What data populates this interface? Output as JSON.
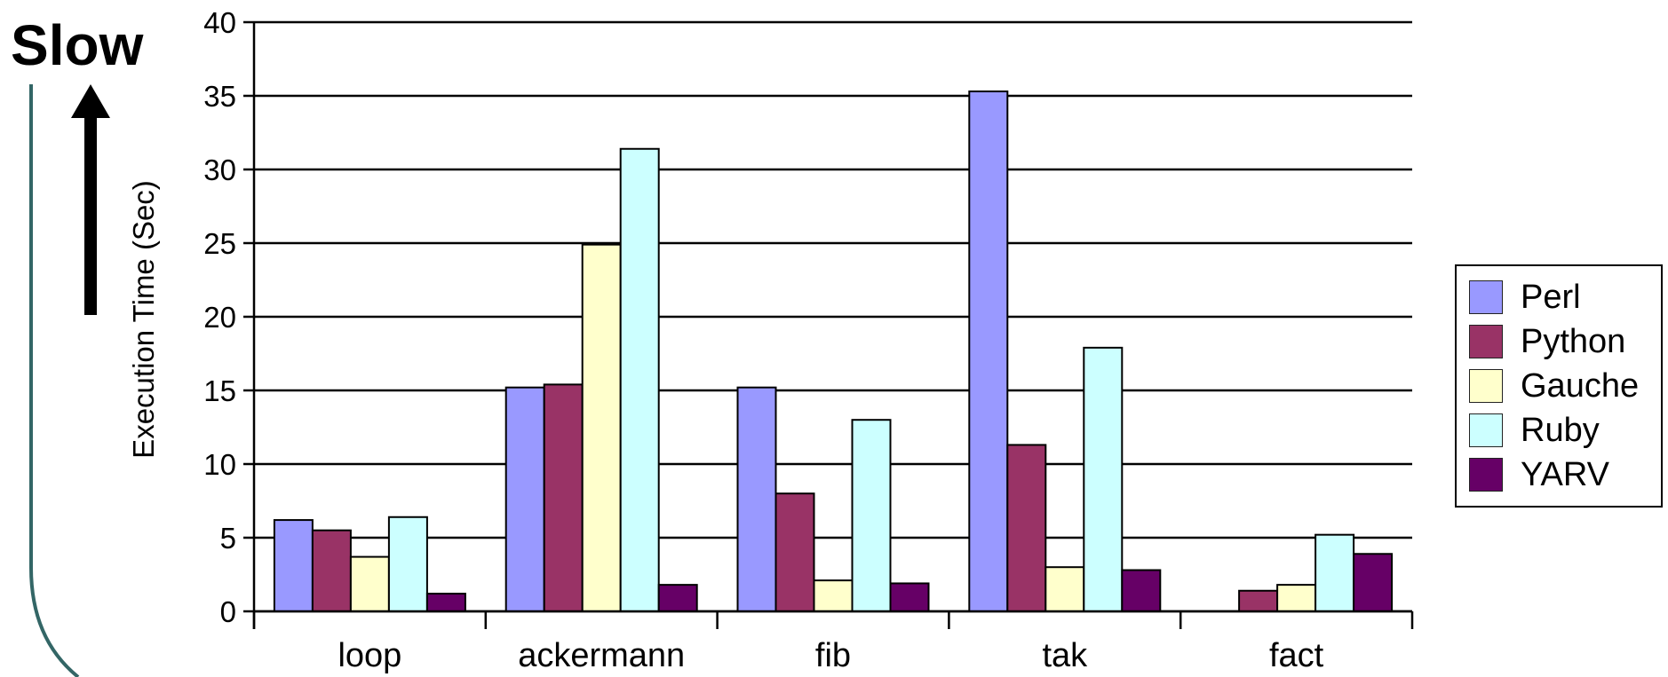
{
  "slow_label": "Slow",
  "chart_data": {
    "type": "bar",
    "title": "",
    "xlabel": "",
    "ylabel": "Execution Time (Sec)",
    "ylim": [
      0,
      40
    ],
    "yticks": [
      0,
      5,
      10,
      15,
      20,
      25,
      30,
      35,
      40
    ],
    "grid": true,
    "legend_position": "right",
    "categories": [
      "loop",
      "ackermann",
      "fib",
      "tak",
      "fact"
    ],
    "series": [
      {
        "name": "Perl",
        "color": "#9999ff",
        "values": [
          6.2,
          15.2,
          15.2,
          35.3,
          0
        ]
      },
      {
        "name": "Python",
        "color": "#993366",
        "values": [
          5.5,
          15.4,
          8.0,
          11.3,
          1.4
        ]
      },
      {
        "name": "Gauche",
        "color": "#ffffcc",
        "values": [
          3.7,
          24.9,
          2.1,
          3.0,
          1.8
        ]
      },
      {
        "name": "Ruby",
        "color": "#ccffff",
        "values": [
          6.4,
          31.4,
          13.0,
          17.9,
          5.2
        ]
      },
      {
        "name": "YARV",
        "color": "#660066",
        "values": [
          1.2,
          1.8,
          1.9,
          2.8,
          3.9
        ]
      }
    ]
  }
}
